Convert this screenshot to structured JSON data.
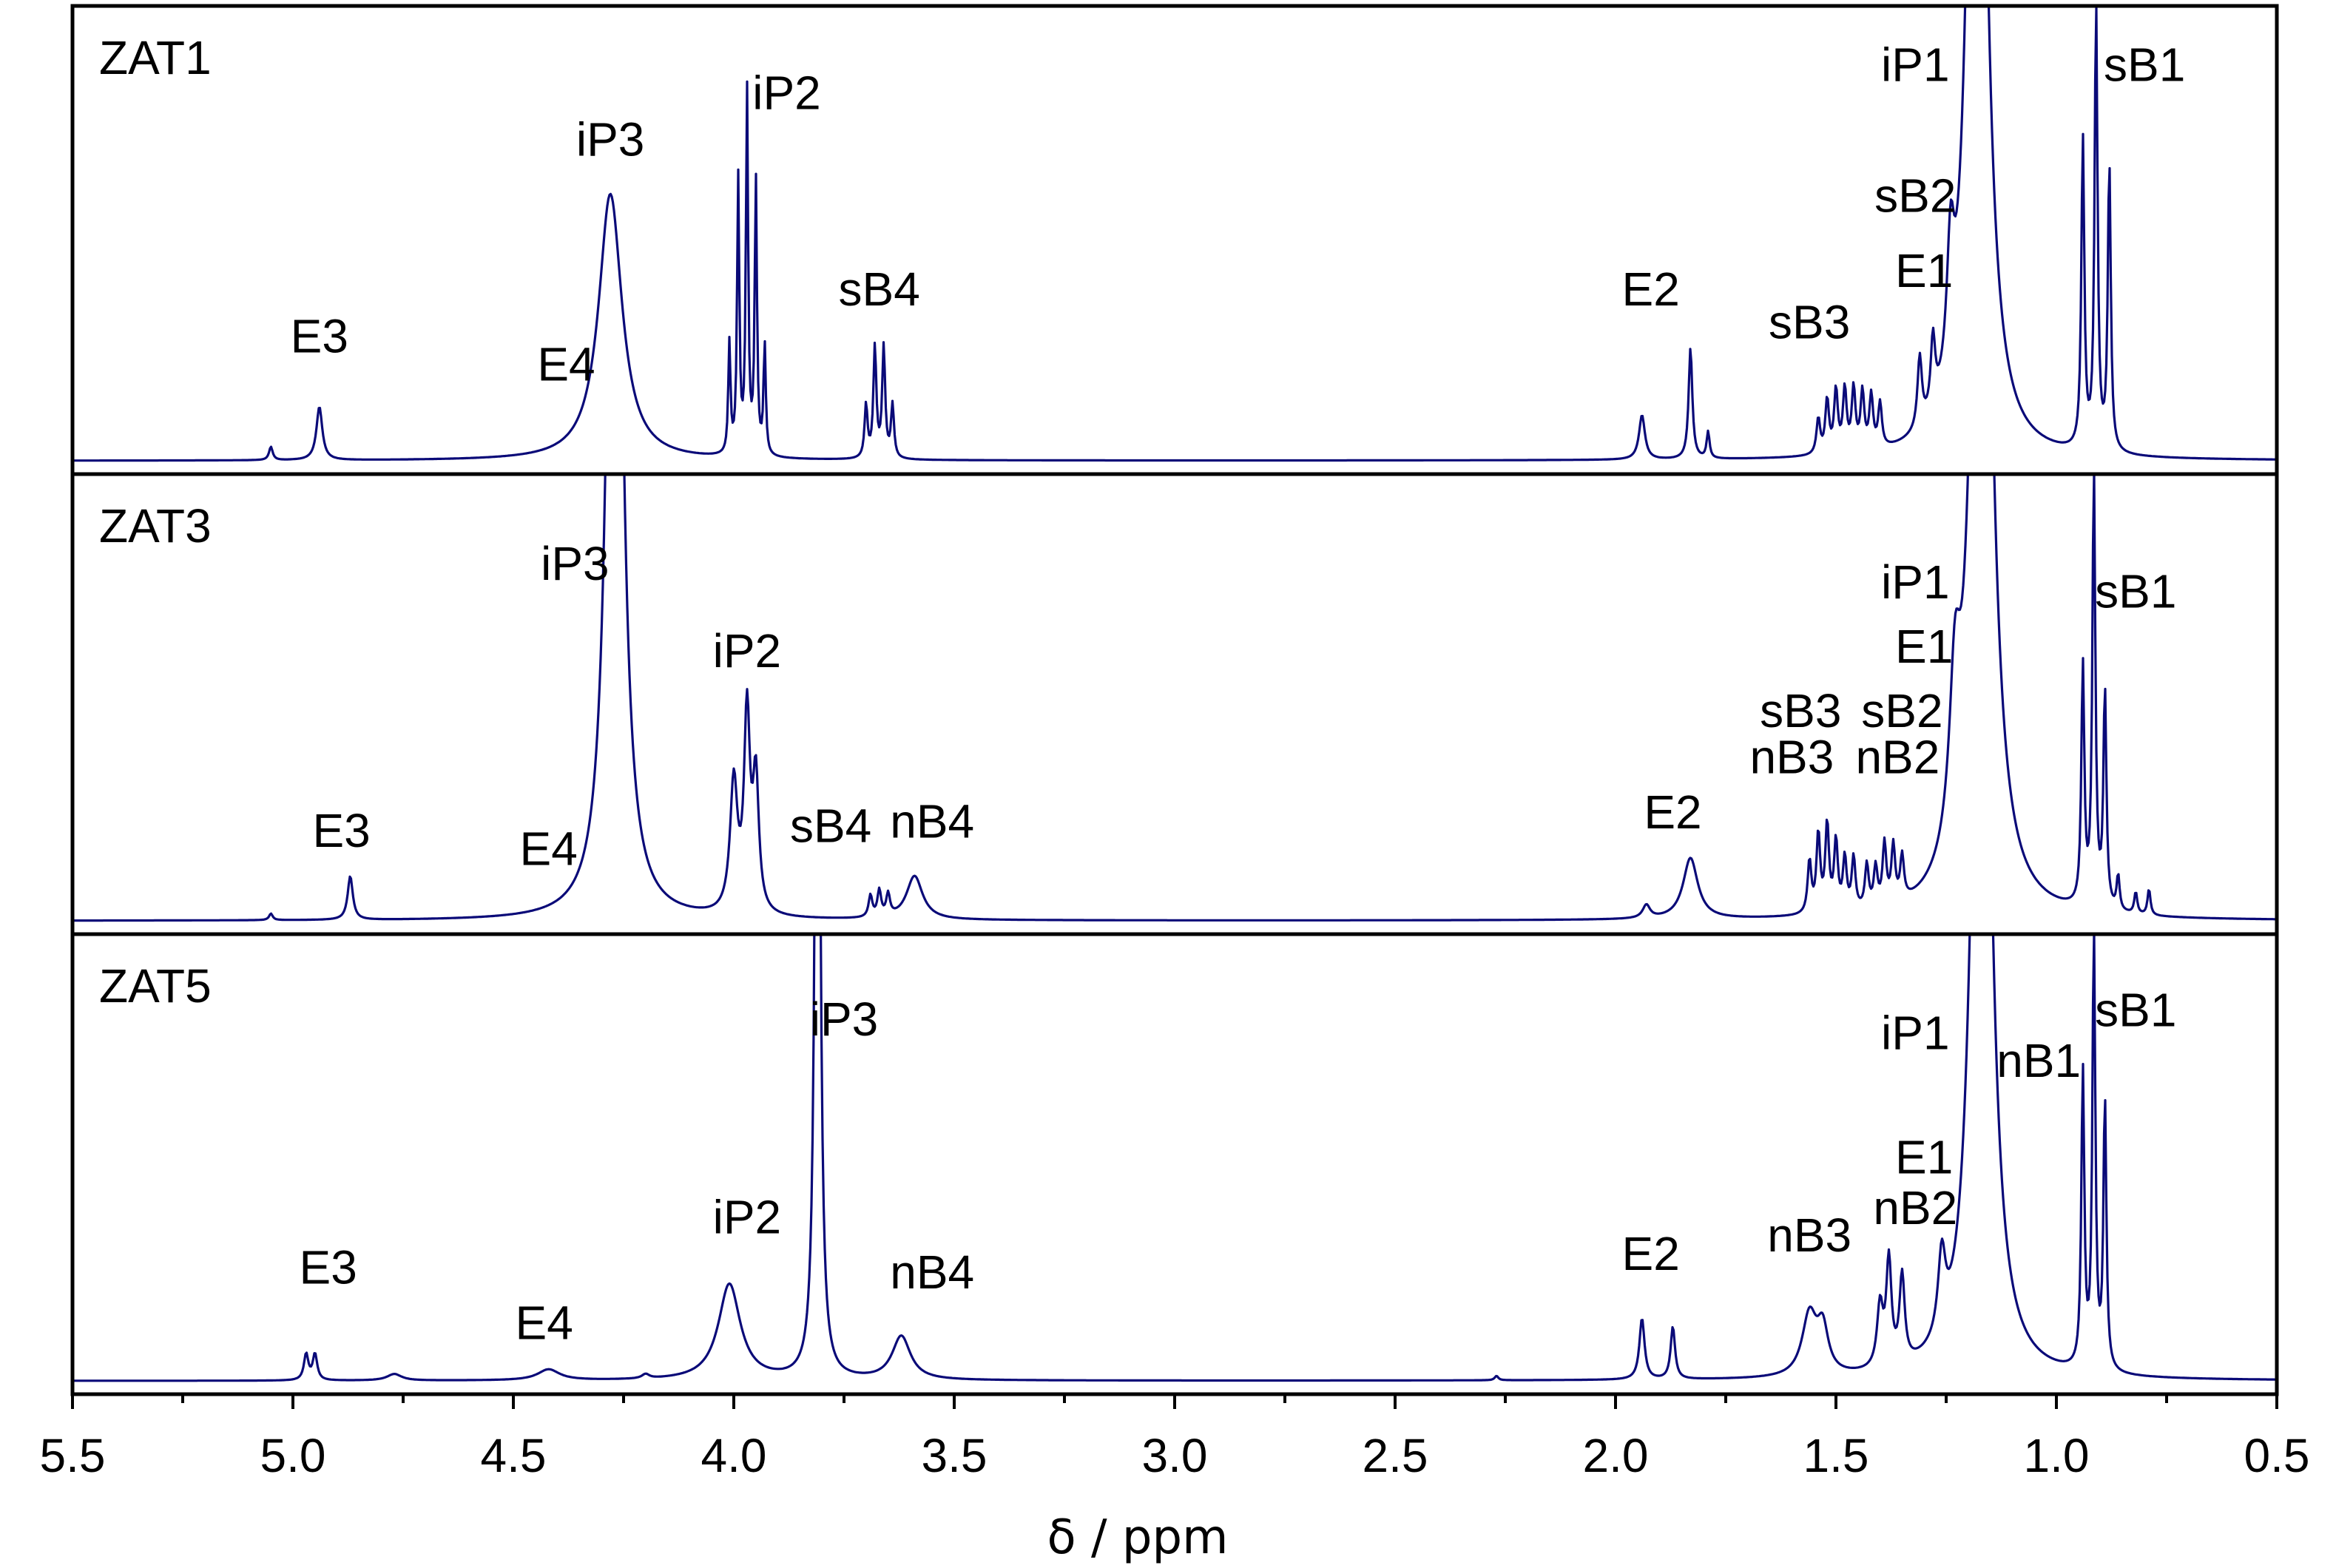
{
  "chart_data": {
    "type": "line",
    "xlabel": "δ / ppm",
    "xlim": [
      5.5,
      0.5
    ],
    "xticks": [
      "5.5",
      "5.0",
      "4.5",
      "4.0",
      "3.5",
      "3.0",
      "2.5",
      "2.0",
      "1.5",
      "1.0",
      "0.5"
    ],
    "line_color": "#0a0a78",
    "panels": [
      {
        "label": "ZAT1",
        "baseline": 0.02,
        "peaks": [
          {
            "x": 5.05,
            "h": 0.03,
            "w": 0.005
          },
          {
            "x": 4.94,
            "h": 0.12,
            "w": 0.008
          },
          {
            "x": 4.28,
            "h": 0.6,
            "w": 0.032
          },
          {
            "x": 4.01,
            "h": 0.25,
            "w": 0.003
          },
          {
            "x": 3.99,
            "h": 0.62,
            "w": 0.003
          },
          {
            "x": 3.97,
            "h": 0.82,
            "w": 0.003
          },
          {
            "x": 3.95,
            "h": 0.62,
            "w": 0.003
          },
          {
            "x": 3.93,
            "h": 0.25,
            "w": 0.003
          },
          {
            "x": 3.7,
            "h": 0.12,
            "w": 0.004
          },
          {
            "x": 3.68,
            "h": 0.25,
            "w": 0.004
          },
          {
            "x": 3.66,
            "h": 0.25,
            "w": 0.004
          },
          {
            "x": 3.64,
            "h": 0.12,
            "w": 0.004
          },
          {
            "x": 1.94,
            "h": 0.1,
            "w": 0.008
          },
          {
            "x": 1.83,
            "h": 0.25,
            "w": 0.005
          },
          {
            "x": 1.79,
            "h": 0.06,
            "w": 0.004
          },
          {
            "x": 1.54,
            "h": 0.08,
            "w": 0.005
          },
          {
            "x": 1.52,
            "h": 0.12,
            "w": 0.005
          },
          {
            "x": 1.5,
            "h": 0.14,
            "w": 0.005
          },
          {
            "x": 1.48,
            "h": 0.14,
            "w": 0.005
          },
          {
            "x": 1.46,
            "h": 0.14,
            "w": 0.005
          },
          {
            "x": 1.44,
            "h": 0.13,
            "w": 0.005
          },
          {
            "x": 1.42,
            "h": 0.12,
            "w": 0.005
          },
          {
            "x": 1.4,
            "h": 0.1,
            "w": 0.005
          },
          {
            "x": 1.31,
            "h": 0.16,
            "w": 0.006
          },
          {
            "x": 1.28,
            "h": 0.16,
            "w": 0.006
          },
          {
            "x": 1.24,
            "h": 0.28,
            "w": 0.01
          },
          {
            "x": 1.18,
            "h": 2.5,
            "w": 0.022
          },
          {
            "x": 0.94,
            "h": 0.7,
            "w": 0.004
          },
          {
            "x": 0.91,
            "h": 1.0,
            "w": 0.004
          },
          {
            "x": 0.88,
            "h": 0.65,
            "w": 0.004
          }
        ],
        "annotations": [
          {
            "text": "E3",
            "x": 4.94,
            "y": 0.26
          },
          {
            "text": "E4",
            "x": 4.38,
            "y": 0.2
          },
          {
            "text": "iP3",
            "x": 4.28,
            "y": 0.68
          },
          {
            "text": "iP2",
            "x": 3.88,
            "y": 0.78
          },
          {
            "text": "sB4",
            "x": 3.67,
            "y": 0.36
          },
          {
            "text": "E2",
            "x": 1.92,
            "y": 0.36
          },
          {
            "text": "sB3",
            "x": 1.56,
            "y": 0.29
          },
          {
            "text": "E1",
            "x": 1.3,
            "y": 0.4
          },
          {
            "text": "sB2",
            "x": 1.32,
            "y": 0.56
          },
          {
            "text": "iP1",
            "x": 1.32,
            "y": 0.84
          },
          {
            "text": "sB1",
            "x": 0.8,
            "y": 0.84
          }
        ]
      },
      {
        "label": "ZAT3",
        "baseline": 0.02,
        "peaks": [
          {
            "x": 5.05,
            "h": 0.015,
            "w": 0.005
          },
          {
            "x": 4.87,
            "h": 0.1,
            "w": 0.007
          },
          {
            "x": 4.27,
            "h": 2.5,
            "w": 0.018
          },
          {
            "x": 4.0,
            "h": 0.3,
            "w": 0.01
          },
          {
            "x": 3.97,
            "h": 0.45,
            "w": 0.008
          },
          {
            "x": 3.95,
            "h": 0.3,
            "w": 0.008
          },
          {
            "x": 3.69,
            "h": 0.05,
            "w": 0.005
          },
          {
            "x": 3.67,
            "h": 0.06,
            "w": 0.005
          },
          {
            "x": 3.65,
            "h": 0.05,
            "w": 0.005
          },
          {
            "x": 3.59,
            "h": 0.1,
            "w": 0.022
          },
          {
            "x": 1.93,
            "h": 0.03,
            "w": 0.01
          },
          {
            "x": 1.83,
            "h": 0.14,
            "w": 0.02
          },
          {
            "x": 1.56,
            "h": 0.12,
            "w": 0.005
          },
          {
            "x": 1.54,
            "h": 0.18,
            "w": 0.005
          },
          {
            "x": 1.52,
            "h": 0.2,
            "w": 0.005
          },
          {
            "x": 1.5,
            "h": 0.16,
            "w": 0.005
          },
          {
            "x": 1.48,
            "h": 0.12,
            "w": 0.005
          },
          {
            "x": 1.46,
            "h": 0.12,
            "w": 0.005
          },
          {
            "x": 1.43,
            "h": 0.1,
            "w": 0.005
          },
          {
            "x": 1.41,
            "h": 0.09,
            "w": 0.005
          },
          {
            "x": 1.39,
            "h": 0.14,
            "w": 0.005
          },
          {
            "x": 1.37,
            "h": 0.13,
            "w": 0.005
          },
          {
            "x": 1.35,
            "h": 0.1,
            "w": 0.005
          },
          {
            "x": 1.23,
            "h": 0.35,
            "w": 0.015
          },
          {
            "x": 1.17,
            "h": 2.5,
            "w": 0.024
          },
          {
            "x": 0.94,
            "h": 0.55,
            "w": 0.004
          },
          {
            "x": 0.915,
            "h": 1.0,
            "w": 0.004
          },
          {
            "x": 0.89,
            "h": 0.5,
            "w": 0.004
          },
          {
            "x": 0.86,
            "h": 0.08,
            "w": 0.004
          },
          {
            "x": 0.82,
            "h": 0.05,
            "w": 0.004
          },
          {
            "x": 0.79,
            "h": 0.06,
            "w": 0.004
          }
        ],
        "annotations": [
          {
            "text": "E3",
            "x": 4.89,
            "y": 0.19
          },
          {
            "text": "E4",
            "x": 4.42,
            "y": 0.15
          },
          {
            "text": "iP3",
            "x": 4.36,
            "y": 0.77
          },
          {
            "text": "iP2",
            "x": 3.97,
            "y": 0.58
          },
          {
            "text": "sB4",
            "x": 3.78,
            "y": 0.2
          },
          {
            "text": "nB4",
            "x": 3.55,
            "y": 0.21
          },
          {
            "text": "E2",
            "x": 1.87,
            "y": 0.23
          },
          {
            "text": "nB3",
            "x": 1.6,
            "y": 0.35
          },
          {
            "text": "sB3",
            "x": 1.58,
            "y": 0.45
          },
          {
            "text": "nB2",
            "x": 1.36,
            "y": 0.35
          },
          {
            "text": "sB2",
            "x": 1.35,
            "y": 0.45
          },
          {
            "text": "E1",
            "x": 1.3,
            "y": 0.59
          },
          {
            "text": "iP1",
            "x": 1.32,
            "y": 0.73
          },
          {
            "text": "sB1",
            "x": 0.82,
            "y": 0.71
          }
        ]
      },
      {
        "label": "ZAT5",
        "baseline": 0.02,
        "peaks": [
          {
            "x": 4.97,
            "h": 0.06,
            "w": 0.006
          },
          {
            "x": 4.95,
            "h": 0.06,
            "w": 0.006
          },
          {
            "x": 4.77,
            "h": 0.015,
            "w": 0.02
          },
          {
            "x": 4.42,
            "h": 0.025,
            "w": 0.03
          },
          {
            "x": 4.2,
            "h": 0.01,
            "w": 0.01
          },
          {
            "x": 4.01,
            "h": 0.22,
            "w": 0.03
          },
          {
            "x": 3.81,
            "h": 2.5,
            "w": 0.006
          },
          {
            "x": 3.62,
            "h": 0.1,
            "w": 0.025
          },
          {
            "x": 2.27,
            "h": 0.01,
            "w": 0.005
          },
          {
            "x": 1.94,
            "h": 0.14,
            "w": 0.007
          },
          {
            "x": 1.87,
            "h": 0.12,
            "w": 0.006
          },
          {
            "x": 1.56,
            "h": 0.14,
            "w": 0.02
          },
          {
            "x": 1.53,
            "h": 0.1,
            "w": 0.015
          },
          {
            "x": 1.4,
            "h": 0.14,
            "w": 0.008
          },
          {
            "x": 1.38,
            "h": 0.24,
            "w": 0.007
          },
          {
            "x": 1.35,
            "h": 0.2,
            "w": 0.007
          },
          {
            "x": 1.26,
            "h": 0.18,
            "w": 0.01
          },
          {
            "x": 1.17,
            "h": 2.5,
            "w": 0.022
          },
          {
            "x": 0.94,
            "h": 0.68,
            "w": 0.004
          },
          {
            "x": 0.915,
            "h": 1.0,
            "w": 0.004
          },
          {
            "x": 0.89,
            "h": 0.62,
            "w": 0.004
          }
        ],
        "annotations": [
          {
            "text": "E3",
            "x": 4.92,
            "y": 0.24
          },
          {
            "text": "E4",
            "x": 4.43,
            "y": 0.12
          },
          {
            "text": "iP2",
            "x": 3.97,
            "y": 0.35
          },
          {
            "text": "iP3",
            "x": 3.75,
            "y": 0.78
          },
          {
            "text": "nB4",
            "x": 3.55,
            "y": 0.23
          },
          {
            "text": "E2",
            "x": 1.92,
            "y": 0.27
          },
          {
            "text": "nB3",
            "x": 1.56,
            "y": 0.31
          },
          {
            "text": "nB2",
            "x": 1.32,
            "y": 0.37
          },
          {
            "text": "E1",
            "x": 1.3,
            "y": 0.48
          },
          {
            "text": "iP1",
            "x": 1.32,
            "y": 0.75
          },
          {
            "text": "nB1",
            "x": 1.04,
            "y": 0.69
          },
          {
            "text": "sB1",
            "x": 0.82,
            "y": 0.8
          }
        ]
      }
    ]
  }
}
